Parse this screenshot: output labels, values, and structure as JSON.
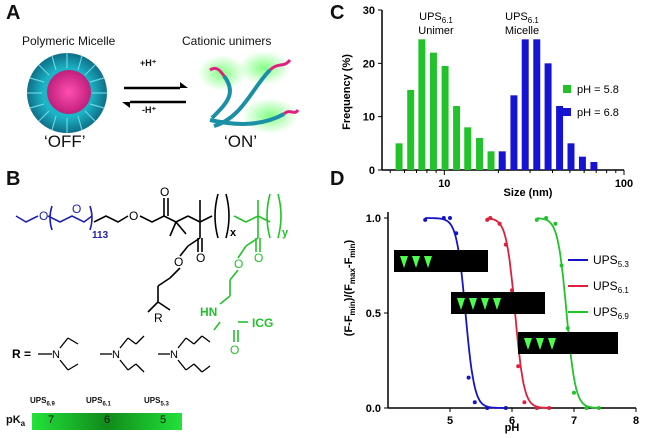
{
  "panels": {
    "a": "A",
    "b": "B",
    "c": "C",
    "d": "D"
  },
  "panel_a": {
    "micelle_label": "Polymeric Micelle",
    "unimer_label": "Cationic unimers",
    "forward": "+H⁺",
    "reverse": "-H⁺",
    "off": "‘OFF’",
    "on": "‘ON’"
  },
  "panel_b": {
    "peg_repeat": "113",
    "x_sub": "x",
    "y_sub": "y",
    "r_label": "R",
    "r_eq": "R =",
    "amine_n": "N",
    "hn": "HN",
    "icg": "ICG",
    "variants": [
      "UPS6.9",
      "UPS6.1",
      "UPS5.3"
    ],
    "pka_label": "pKa",
    "pka_values": [
      "7",
      "6",
      "5"
    ]
  },
  "chart_c": {
    "type": "bar",
    "xlabel": "Size (nm)",
    "ylabel": "Frequency (%)",
    "xscale": "log",
    "xlim": [
      4.5,
      100
    ],
    "ylim": [
      0,
      30
    ],
    "yticks": [
      0,
      10,
      20,
      30
    ],
    "xticks": [
      10,
      100
    ],
    "annotations": [
      {
        "main": "UPS",
        "sub": "6.1",
        "line2": "Unimer"
      },
      {
        "main": "UPS",
        "sub": "6.1",
        "line2": "Micelle"
      }
    ],
    "legend": [
      "pH = 5.8",
      "pH = 6.8"
    ],
    "colors": [
      "#22c32a",
      "#1414d2"
    ]
  },
  "chart_d": {
    "type": "line",
    "xlabel": "pH",
    "ylabel": "(F-Fmin)/(Fmax-Fmin)",
    "xlim": [
      4,
      8
    ],
    "ylim": [
      0,
      1
    ],
    "xticks": [
      5,
      6,
      7,
      8
    ],
    "yticks": [
      0.0,
      0.5,
      1.0
    ],
    "legend": [
      {
        "main": "UPS",
        "sub": "5.3"
      },
      {
        "main": "UPS",
        "sub": "6.1"
      },
      {
        "main": "UPS",
        "sub": "6.9"
      }
    ],
    "colors": [
      "#1414c8",
      "#e0203a",
      "#22c32a"
    ]
  },
  "chart_data": [
    {
      "type": "bar",
      "xlabel": "Size (nm)",
      "ylabel": "Frequency (%)",
      "xscale": "log",
      "ylim": [
        0,
        30
      ],
      "series": [
        {
          "name": "pH = 5.8",
          "x": [
            5.6,
            6.5,
            7.5,
            8.7,
            10.1,
            11.7,
            13.5,
            15.7,
            18.2,
            21.0
          ],
          "values": [
            5,
            15,
            24.5,
            22,
            19.5,
            12,
            8,
            6,
            3.5,
            1.8
          ]
        },
        {
          "name": "pH = 6.8",
          "x": [
            21.0,
            24.4,
            28.2,
            32.7,
            37.8,
            43.8,
            50.7,
            58.7,
            68.0
          ],
          "values": [
            3.5,
            14,
            24.5,
            24.5,
            20,
            12,
            5,
            2.5,
            1.5
          ]
        }
      ]
    },
    {
      "type": "line",
      "xlabel": "pH",
      "ylabel": "(F-Fmin)/(Fmax-Fmin)",
      "xlim": [
        4,
        8
      ],
      "ylim": [
        0,
        1
      ],
      "series": [
        {
          "name": "UPS5.3",
          "midpoint": 5.25,
          "points": [
            [
              4.6,
              0.99
            ],
            [
              4.9,
              1.0
            ],
            [
              5.0,
              1.0
            ],
            [
              5.1,
              0.92
            ],
            [
              5.2,
              0.6
            ],
            [
              5.3,
              0.16
            ],
            [
              5.4,
              0.03
            ],
            [
              5.6,
              0.0
            ],
            [
              5.9,
              0.0
            ]
          ]
        },
        {
          "name": "UPS6.1",
          "midpoint": 6.05,
          "points": [
            [
              5.6,
              0.99
            ],
            [
              5.65,
              1.0
            ],
            [
              5.8,
              0.97
            ],
            [
              5.9,
              0.86
            ],
            [
              6.0,
              0.62
            ],
            [
              6.1,
              0.22
            ],
            [
              6.2,
              0.03
            ],
            [
              6.4,
              0.0
            ],
            [
              6.6,
              0.0
            ]
          ]
        },
        {
          "name": "UPS6.9",
          "midpoint": 6.88,
          "points": [
            [
              6.4,
              0.99
            ],
            [
              6.55,
              1.0
            ],
            [
              6.7,
              0.97
            ],
            [
              6.8,
              0.75
            ],
            [
              6.9,
              0.42
            ],
            [
              7.0,
              0.08
            ],
            [
              7.2,
              0.0
            ],
            [
              7.4,
              0.0
            ]
          ]
        }
      ]
    }
  ]
}
